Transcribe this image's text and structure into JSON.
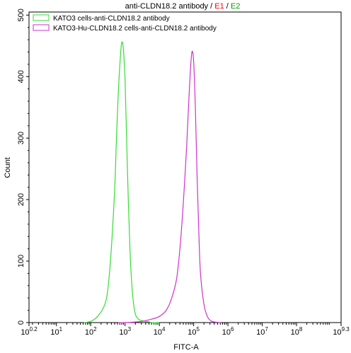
{
  "chart_data": {
    "type": "line",
    "title_parts": [
      {
        "text": "anti-CLDN18.2 antibody",
        "color": "#000000"
      },
      {
        "text": " / ",
        "color": "#000000"
      },
      {
        "text": "E1",
        "color": "#ff0000"
      },
      {
        "text": " / ",
        "color": "#000000"
      },
      {
        "text": "E2",
        "color": "#00a000"
      }
    ],
    "xlabel": "FITC-A",
    "ylabel": "Count",
    "x_scale": "log",
    "xlim_exp": [
      0.2,
      9.3
    ],
    "x_ticks": [
      {
        "base": "10",
        "exp": "0.2",
        "value": 0.2
      },
      {
        "base": "10",
        "exp": "1",
        "value": 1
      },
      {
        "base": "10",
        "exp": "2",
        "value": 2
      },
      {
        "base": "10",
        "exp": "3",
        "value": 3
      },
      {
        "base": "10",
        "exp": "4",
        "value": 4
      },
      {
        "base": "10",
        "exp": "5",
        "value": 5
      },
      {
        "base": "10",
        "exp": "6",
        "value": 6
      },
      {
        "base": "10",
        "exp": "7",
        "value": 7
      },
      {
        "base": "10",
        "exp": "8",
        "value": 8
      },
      {
        "base": "10",
        "exp": "9.3",
        "value": 9.3
      }
    ],
    "ylim": [
      0,
      505
    ],
    "y_ticks": [
      0,
      100,
      200,
      300,
      400,
      500
    ],
    "grid": false,
    "legend_position": "top-left",
    "series": [
      {
        "name": "KATO3 cells-anti-CLDN18.2 antibody",
        "color": "#33dd33",
        "x_exp": [
          1.8,
          2.0,
          2.2,
          2.4,
          2.5,
          2.6,
          2.7,
          2.75,
          2.8,
          2.85,
          2.9,
          2.95,
          3.0,
          3.05,
          3.1,
          3.15,
          3.2,
          3.25,
          3.3,
          3.35,
          3.4,
          3.5,
          3.6,
          3.7,
          3.8,
          4.0
        ],
        "y": [
          0,
          2,
          10,
          28,
          55,
          120,
          220,
          300,
          370,
          420,
          455,
          445,
          395,
          290,
          190,
          110,
          60,
          30,
          14,
          8,
          5,
          3,
          2,
          1,
          0,
          0
        ]
      },
      {
        "name": "KATO3-Hu-CLDN18.2 cells-anti-CLDN18.2 antibody",
        "color": "#cc33cc",
        "x_exp": [
          2.8,
          3.0,
          3.3,
          3.5,
          3.8,
          4.0,
          4.2,
          4.35,
          4.5,
          4.6,
          4.7,
          4.8,
          4.85,
          4.9,
          4.95,
          5.0,
          5.05,
          5.1,
          5.15,
          5.2,
          5.3,
          5.4,
          5.5,
          5.6,
          5.8
        ],
        "y": [
          0,
          0,
          1,
          2,
          6,
          10,
          20,
          38,
          70,
          120,
          195,
          290,
          350,
          405,
          440,
          425,
          350,
          240,
          150,
          80,
          30,
          10,
          3,
          1,
          0
        ]
      }
    ]
  }
}
